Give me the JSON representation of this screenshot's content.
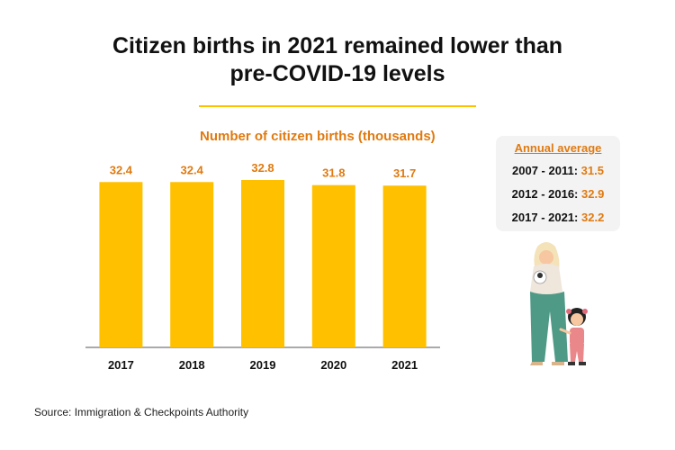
{
  "title_line1": "Citizen births in 2021 remained lower than",
  "title_line2": "pre-COVID-19 levels",
  "colors": {
    "accent": "#e07a10",
    "bar": "#ffc000",
    "divider": "#ffc000",
    "panel": "#f3f3f3",
    "text": "#111111"
  },
  "chart_data": {
    "type": "bar",
    "title": "Number of citizen births (thousands)",
    "categories": [
      "2017",
      "2018",
      "2019",
      "2020",
      "2021"
    ],
    "values": [
      32.4,
      32.4,
      32.8,
      31.8,
      31.7
    ],
    "data_labels": [
      "32.4",
      "32.4",
      "32.8",
      "31.8",
      "31.7"
    ],
    "xlabel": "",
    "ylabel": "",
    "grid": false,
    "legend": "none"
  },
  "annual_average": {
    "title": "Annual average",
    "rows": [
      {
        "period": "2007 - 2011:",
        "value": "31.5"
      },
      {
        "period": "2012 - 2016:",
        "value": "32.9"
      },
      {
        "period": "2017 - 2021:",
        "value": "32.2"
      }
    ]
  },
  "source": "Source: Immigration & Checkpoints Authority",
  "illustration_icon": "mother-and-child-illustration"
}
